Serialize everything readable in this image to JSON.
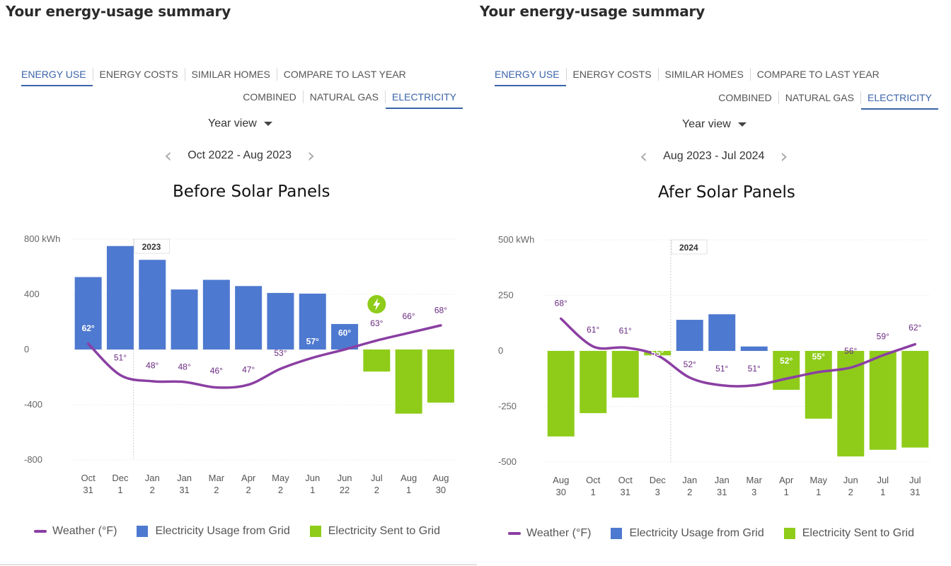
{
  "colors": {
    "usage": "#4e79d0",
    "sent": "#8fcc1a",
    "weather": "#8b3fa3",
    "active_tab": "#3a64a8"
  },
  "panels": [
    {
      "summary_title": "Your energy-usage summary",
      "tabs": [
        "ENERGY USE",
        "ENERGY COSTS",
        "SIMILAR HOMES",
        "COMPARE TO LAST YEAR"
      ],
      "subtabs": [
        "COMBINED",
        "NATURAL GAS",
        "ELECTRICITY"
      ],
      "view_label": "Year view",
      "period_label": "Oct 2022 - Aug 2023",
      "legend": {
        "weather": "Weather (°F)",
        "usage": "Electricity Usage from Grid",
        "sent": "Electricity Sent to Grid"
      }
    },
    {
      "summary_title": "Your energy-usage summary",
      "tabs": [
        "ENERGY USE",
        "ENERGY COSTS",
        "SIMILAR HOMES",
        "COMPARE TO LAST YEAR"
      ],
      "subtabs": [
        "COMBINED",
        "NATURAL GAS",
        "ELECTRICITY"
      ],
      "view_label": "Year view",
      "period_label": "Aug 2023 - Jul 2024",
      "legend": {
        "weather": "Weather (°F)",
        "usage": "Electricity Usage from Grid",
        "sent": "Electricity Sent to Grid"
      }
    }
  ],
  "chart_data": [
    {
      "type": "bar",
      "title": "Before Solar Panels",
      "ylim": [
        -800,
        800
      ],
      "yticks": [
        "800 kWh",
        "400",
        "0",
        "-400",
        "-800"
      ],
      "ytick_values": [
        800,
        400,
        0,
        -400,
        -800
      ],
      "year_marker": "2023",
      "year_marker_index": 2,
      "categories": [
        [
          "Oct",
          "31"
        ],
        [
          "Dec",
          "1"
        ],
        [
          "Jan",
          "2"
        ],
        [
          "Jan",
          "31"
        ],
        [
          "Mar",
          "2"
        ],
        [
          "Apr",
          "2"
        ],
        [
          "May",
          "2"
        ],
        [
          "Jun",
          "1"
        ],
        [
          "Jun",
          "22"
        ],
        [
          "Jul",
          "2"
        ],
        [
          "Aug",
          "1"
        ],
        [
          "Aug",
          "30"
        ]
      ],
      "series": [
        {
          "name": "Electricity Usage from Grid",
          "values": [
            525,
            750,
            650,
            435,
            505,
            460,
            410,
            405,
            185,
            0,
            0,
            0
          ]
        },
        {
          "name": "Electricity Sent to Grid",
          "values": [
            0,
            0,
            0,
            0,
            0,
            0,
            0,
            0,
            0,
            -160,
            -465,
            -385
          ]
        }
      ],
      "weather": {
        "name": "Weather (°F)",
        "labels": [
          "62°",
          "51°",
          "48°",
          "48°",
          "46°",
          "47°",
          "53°",
          "57°",
          "60°",
          "63°",
          "66°",
          "68°"
        ],
        "line_values": [
          42,
          -185,
          -230,
          -235,
          -275,
          -255,
          -140,
          -60,
          0,
          65,
          120,
          175
        ],
        "label_values": [
          155,
          -60,
          -115,
          -125,
          -155,
          -145,
          -25,
          60,
          120,
          190,
          240,
          285
        ]
      },
      "icon": "lightning-icon",
      "icon_index": 9
    },
    {
      "type": "bar",
      "title": "Afer Solar Panels",
      "ylim": [
        -500,
        500
      ],
      "yticks": [
        "500 kWh",
        "250",
        "0",
        "-250",
        "-500"
      ],
      "ytick_values": [
        500,
        250,
        0,
        -250,
        -500
      ],
      "year_marker": "2024",
      "year_marker_index": 4,
      "categories": [
        [
          "Aug",
          "30"
        ],
        [
          "Oct",
          "1"
        ],
        [
          "Oct",
          "31"
        ],
        [
          "Dec",
          "3"
        ],
        [
          "Jan",
          "2"
        ],
        [
          "Jan",
          "31"
        ],
        [
          "Mar",
          "3"
        ],
        [
          "Apr",
          "1"
        ],
        [
          "May",
          "1"
        ],
        [
          "Jun",
          "2"
        ],
        [
          "Jul",
          "1"
        ],
        [
          "Jul",
          "31"
        ]
      ],
      "series": [
        {
          "name": "Electricity Usage from Grid",
          "values": [
            0,
            0,
            0,
            0,
            140,
            165,
            20,
            0,
            0,
            0,
            0,
            0
          ]
        },
        {
          "name": "Electricity Sent to Grid",
          "values": [
            -385,
            -280,
            -210,
            -20,
            0,
            0,
            0,
            -175,
            -305,
            -475,
            -445,
            -435
          ]
        }
      ],
      "weather": {
        "name": "Weather (°F)",
        "labels": [
          "68°",
          "61°",
          "61°",
          "55°",
          "52°",
          "51°",
          "51°",
          "52°",
          "55°",
          "56°",
          "59°",
          "62°"
        ],
        "line_values": [
          145,
          20,
          15,
          -20,
          -120,
          -155,
          -155,
          -125,
          -95,
          -75,
          -20,
          30
        ],
        "label_values": [
          215,
          95,
          90,
          -10,
          -60,
          -80,
          -80,
          -45,
          -25,
          0,
          65,
          105
        ]
      }
    }
  ]
}
